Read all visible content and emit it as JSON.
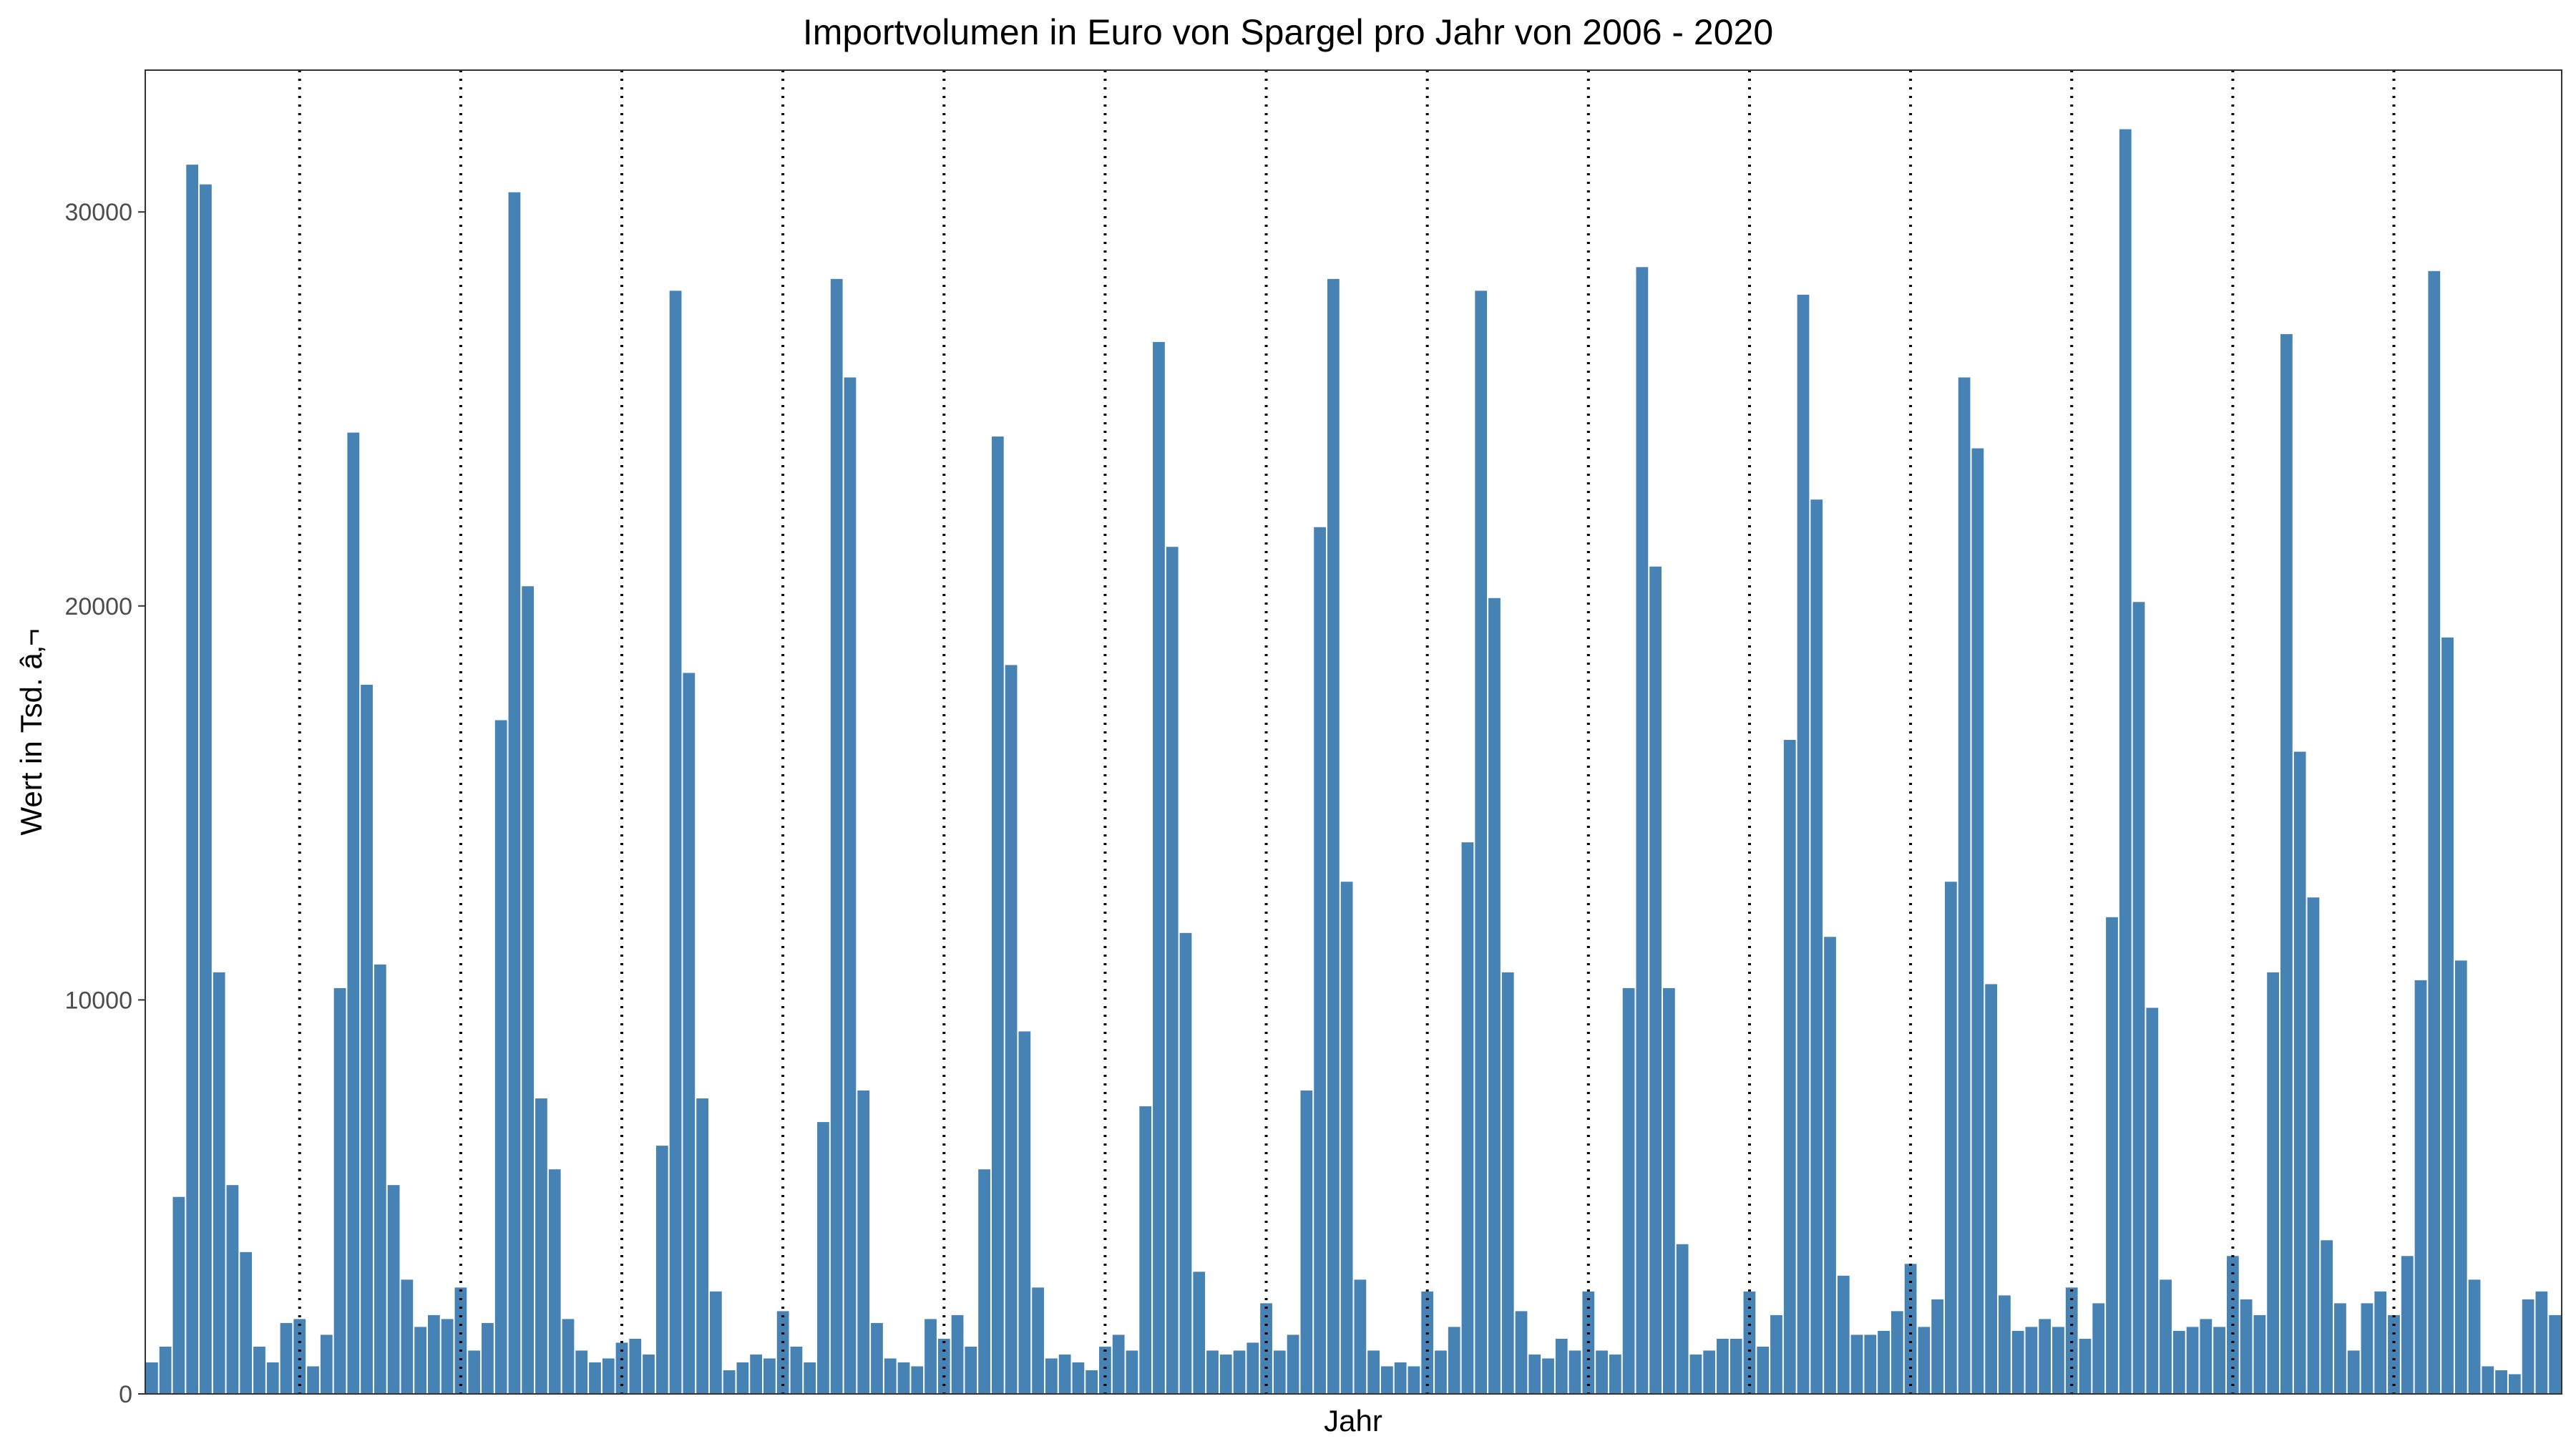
{
  "chart_data": {
    "type": "bar",
    "title": "Importvolumen in Euro von Spargel pro Jahr von 2006 - 2020",
    "xlabel": "Jahr",
    "ylabel": "Wert in Tsd. â‚¬",
    "ylim": [
      0,
      33600
    ],
    "y_ticks": [
      0,
      10000,
      20000,
      30000
    ],
    "y_tick_labels": [
      "0",
      "10000",
      "20000",
      "30000"
    ],
    "grid": false,
    "bar_color": "#4682B4",
    "separator_style": "dotted",
    "months_per_year": 12,
    "years": 15,
    "values": [
      800,
      1200,
      5000,
      31200,
      30700,
      10700,
      5300,
      3600,
      1200,
      800,
      1800,
      1900,
      700,
      1500,
      10300,
      24400,
      18000,
      10900,
      5300,
      2900,
      1700,
      2000,
      1900,
      2700,
      1100,
      1800,
      17100,
      30500,
      20500,
      7500,
      5700,
      1900,
      1100,
      800,
      900,
      1300,
      1400,
      1000,
      6300,
      28000,
      18300,
      7500,
      2600,
      600,
      800,
      1000,
      900,
      2100,
      1200,
      800,
      6900,
      28300,
      25800,
      7700,
      1800,
      900,
      800,
      700,
      1900,
      1400,
      2000,
      1200,
      5700,
      24300,
      18500,
      9200,
      2700,
      900,
      1000,
      800,
      600,
      1200,
      1500,
      1100,
      7300,
      26700,
      21500,
      11700,
      3100,
      1100,
      1000,
      1100,
      1300,
      2300,
      1100,
      1500,
      7700,
      22000,
      28300,
      13000,
      2900,
      1100,
      700,
      800,
      700,
      2600,
      1100,
      1700,
      14000,
      28000,
      20200,
      10700,
      2100,
      1000,
      900,
      1400,
      1100,
      2600,
      1100,
      1000,
      10300,
      28600,
      21000,
      10300,
      3800,
      1000,
      1100,
      1400,
      1400,
      2600,
      1200,
      2000,
      16600,
      27900,
      22700,
      11600,
      3000,
      1500,
      1500,
      1600,
      2100,
      3300,
      1700,
      2400,
      13000,
      25800,
      24000,
      10400,
      2500,
      1600,
      1700,
      1900,
      1700,
      2700,
      1400,
      2300,
      12100,
      32100,
      20100,
      9800,
      2900,
      1600,
      1700,
      1900,
      1700,
      3500,
      2400,
      2000,
      10700,
      26900,
      16300,
      12600,
      3900,
      2300,
      1100,
      2300,
      2600,
      2000,
      3500,
      10500,
      28500,
      19200,
      11000,
      2900,
      700,
      600,
      500,
      2400,
      2600,
      2000
    ]
  }
}
